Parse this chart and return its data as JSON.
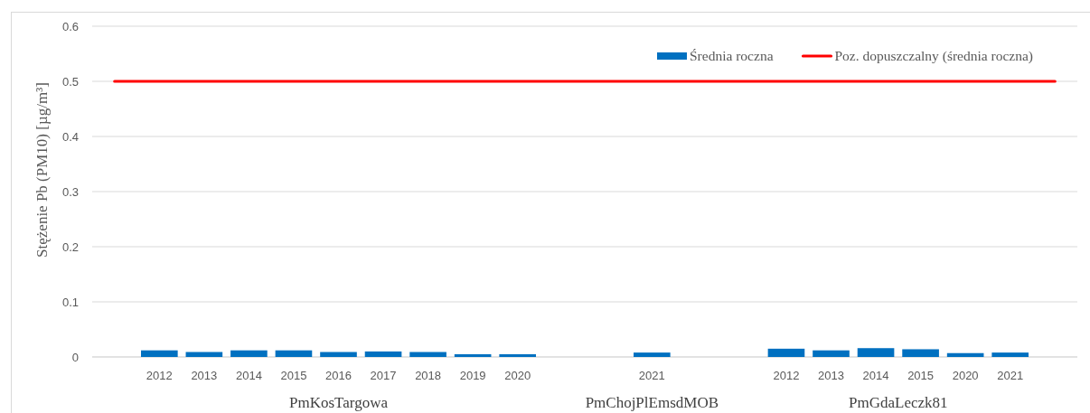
{
  "chart_data": {
    "type": "bar",
    "categories": [
      null,
      "2012",
      "2013",
      "2014",
      "2015",
      "2016",
      "2017",
      "2018",
      "2019",
      "2020",
      null,
      null,
      "2021",
      null,
      null,
      "2012",
      "2013",
      "2014",
      "2015",
      "2020",
      "2021",
      null
    ],
    "series": [
      {
        "name": "Średnia roczna",
        "color": "#0070c0",
        "values": [
          null,
          0.012,
          0.009,
          0.012,
          0.012,
          0.009,
          0.01,
          0.009,
          0.005,
          0.005,
          null,
          null,
          0.008,
          null,
          null,
          0.015,
          0.012,
          0.016,
          0.014,
          0.007,
          0.008,
          null
        ]
      },
      {
        "name": "Poz. dopuszczalny (średnia roczna)",
        "type": "line",
        "color": "#ff0000",
        "values": [
          0.5,
          0.5,
          0.5,
          0.5,
          0.5,
          0.5,
          0.5,
          0.5,
          0.5,
          0.5,
          0.5,
          0.5,
          0.5,
          0.5,
          0.5,
          0.5,
          0.5,
          0.5,
          0.5,
          0.5,
          0.5,
          0.5
        ]
      }
    ],
    "ylabel": "Stężenie Pb (PM10) [µg/m³]",
    "ylim": [
      0,
      0.6
    ],
    "yticks": [
      0,
      0.1,
      0.2,
      0.3,
      0.4,
      0.5,
      0.6
    ],
    "grid": "y",
    "legend": "top right",
    "annotations": [
      "PmKosTargowa",
      "PmChojPlEmsdMOB",
      "PmGdaLeczk81"
    ]
  }
}
